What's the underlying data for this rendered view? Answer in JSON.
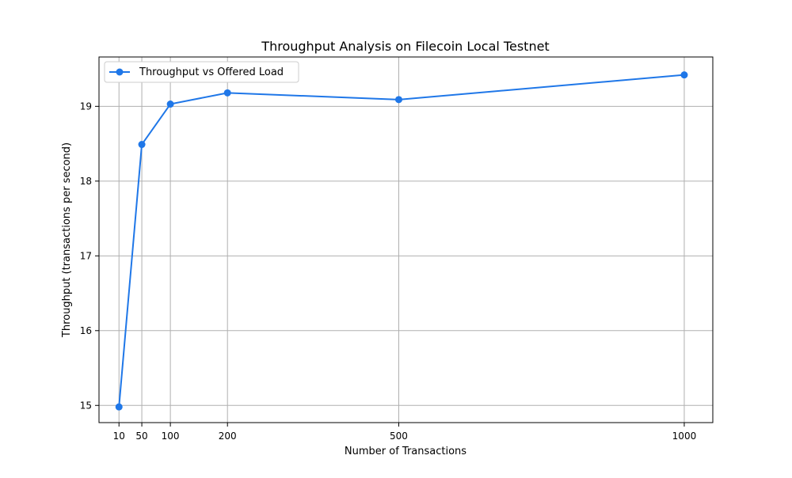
{
  "chart_data": {
    "type": "line",
    "title": "Throughput Analysis on Filecoin Local Testnet",
    "xlabel": "Number of Transactions",
    "ylabel": "Throughput (transactions per second)",
    "x": [
      10,
      50,
      100,
      200,
      500,
      1000
    ],
    "x_ticks": [
      "10",
      "50",
      "100",
      "200",
      "500",
      "1000"
    ],
    "y_ticks": [
      "15",
      "16",
      "17",
      "18",
      "19"
    ],
    "xlim": [
      -25,
      1050
    ],
    "ylim": [
      14.77,
      19.66
    ],
    "grid": true,
    "legend_position": "top-left",
    "series": [
      {
        "name": "Throughput vs Offered Load",
        "color": "#1f77e8",
        "marker": "circle",
        "values": [
          14.98,
          18.49,
          19.03,
          19.18,
          19.09,
          19.42
        ]
      }
    ]
  }
}
